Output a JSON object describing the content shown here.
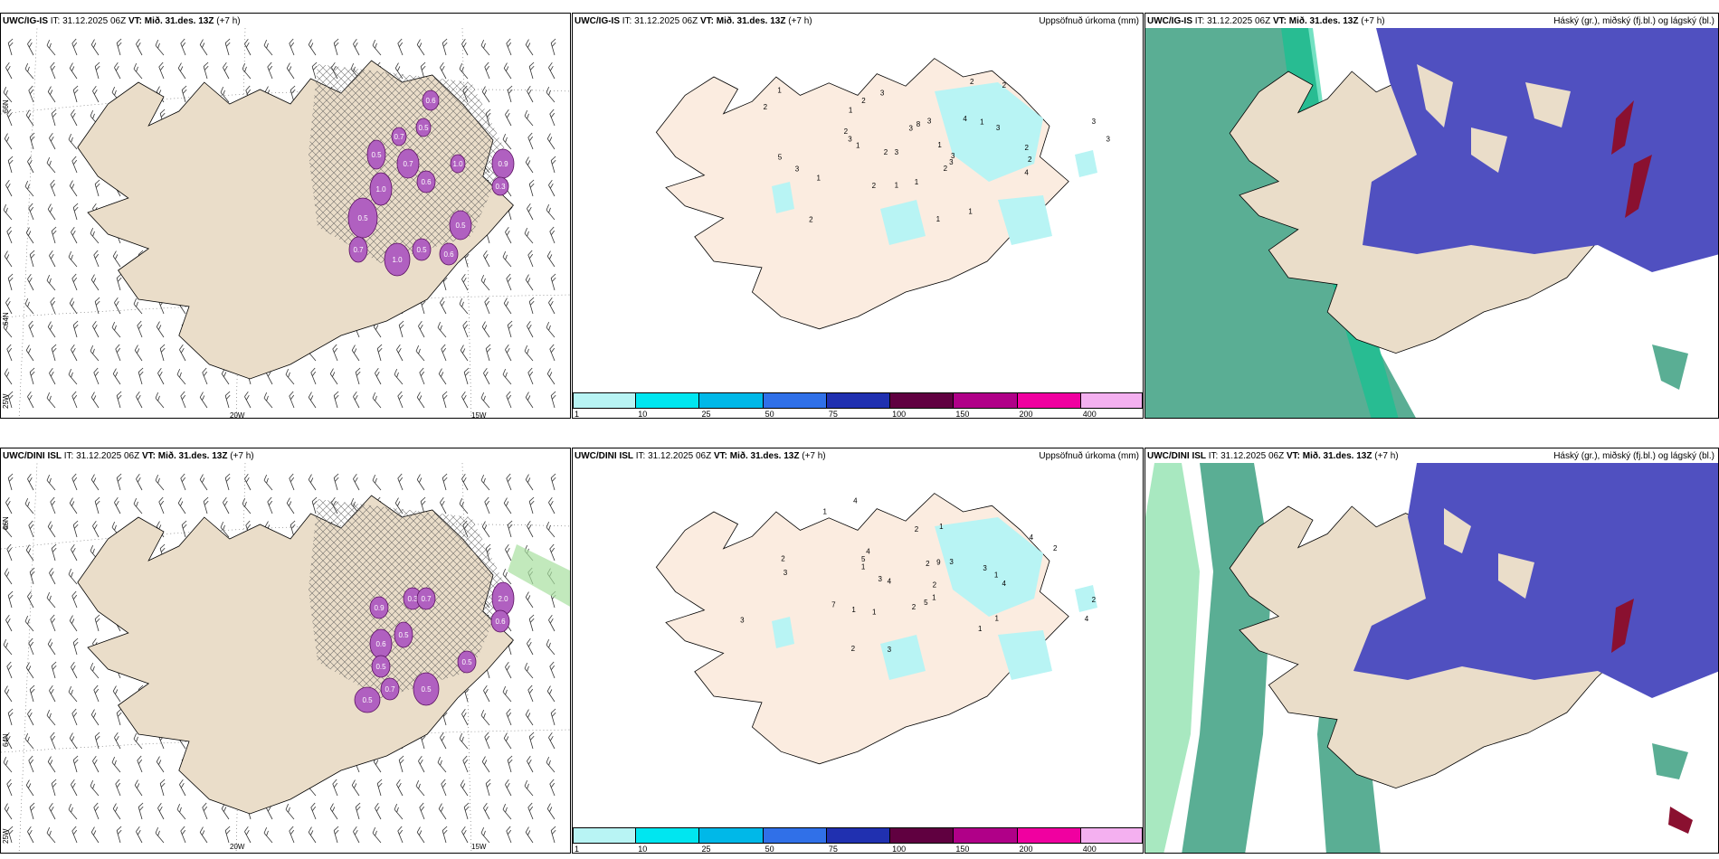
{
  "panels": [
    {
      "model": "UWC/IG-IS",
      "it_label": "IT: 31.12.2025 06Z",
      "vt_prefix": "VT:",
      "vt_value": "Mið. 31.des. 13Z",
      "lead": "(+7 h)",
      "right_title": ""
    },
    {
      "model": "UWC/IG-IS",
      "it_label": "IT: 31.12.2025 06Z",
      "vt_prefix": "VT:",
      "vt_value": "Mið. 31.des. 13Z",
      "lead": "(+7 h)",
      "right_title": "Uppsöfnuð úrkoma (mm)"
    },
    {
      "model": "UWC/IG-IS",
      "it_label": "IT: 31.12.2025 06Z",
      "vt_prefix": "VT:",
      "vt_value": "Mið. 31.des. 13Z",
      "lead": "(+7 h)",
      "right_title": "Háský (gr.), miðský (fj.bl.) og lágský (bl.)"
    },
    {
      "model": "UWC/DINI ISL",
      "it_label": "IT: 31.12.2025 06Z",
      "vt_prefix": "VT:",
      "vt_value": "Mið. 31.des. 13Z",
      "lead": "(+7 h)",
      "right_title": ""
    },
    {
      "model": "UWC/DINI ISL",
      "it_label": "IT: 31.12.2025 06Z",
      "vt_prefix": "VT:",
      "vt_value": "Mið. 31.des. 13Z",
      "lead": "(+7 h)",
      "right_title": "Uppsöfnuð úrkoma (mm)"
    },
    {
      "model": "UWC/DINI ISL",
      "it_label": "IT: 31.12.2025 06Z",
      "vt_prefix": "VT:",
      "vt_value": "Mið. 31.des. 13Z",
      "lead": "(+7 h)",
      "right_title": "Háský (gr.), miðský (fj.bl.) og lágský (bl.)"
    }
  ],
  "grid_labels": {
    "lat_66": "66N",
    "lat_64": "64N",
    "lon_25": "25W",
    "lon_20": "20W",
    "lon_15": "15W"
  },
  "colorbar": {
    "labels": [
      "1",
      "10",
      "25",
      "50",
      "75",
      "100",
      "150",
      "200",
      "400"
    ],
    "colors": [
      "#b8f4f4",
      "#00e6f0",
      "#00b8e8",
      "#3070e8",
      "#2030b0",
      "#600040",
      "#b00088",
      "#f000a0",
      "#f4b0f0"
    ]
  },
  "colors": {
    "land": "#eaddc9",
    "land_light": "#fbece0",
    "coast": "#000000",
    "precip_light": "#b8f4f4",
    "icing": "#b060c0",
    "high_cloud": "#5aae94",
    "mid_cloud": "#5050c0",
    "low_cloud": "#ffffff",
    "cloud_edge": "#00c080"
  },
  "precip_top": [
    "1",
    "2",
    "3",
    "2",
    "2",
    "3",
    "2",
    "3",
    "4",
    "5",
    "2",
    "1",
    "1",
    "3",
    "3",
    "8",
    "3",
    "3",
    "1",
    "1",
    "2",
    "2",
    "3",
    "2",
    "1",
    "2",
    "3",
    "2",
    "3",
    "3",
    "1",
    "4",
    "1",
    "1",
    "2",
    "1"
  ],
  "precip_bottom": [
    "2",
    "3",
    "3",
    "2",
    "4",
    "4",
    "7",
    "1",
    "1",
    "2",
    "2",
    "2",
    "4",
    "4",
    "4",
    "9",
    "5",
    "5",
    "1",
    "1",
    "2",
    "1",
    "3",
    "4",
    "3",
    "1",
    "2",
    "3",
    "2",
    "1",
    "1",
    "3",
    "1"
  ],
  "icing_top": [
    "0.5",
    "1.0",
    "0.5",
    "0.7",
    "1.0",
    "0.6",
    "0.5",
    "0.7",
    "0.6",
    "0.5",
    "0.6",
    "1.0",
    "0.9",
    "0.3",
    "0.5",
    "0.7"
  ],
  "icing_bottom": [
    "0.6",
    "0.5",
    "0.9",
    "0.3",
    "0.5",
    "0.7",
    "2.0",
    "0.6",
    "0.5",
    "0.5",
    "0.7",
    "0.5"
  ]
}
